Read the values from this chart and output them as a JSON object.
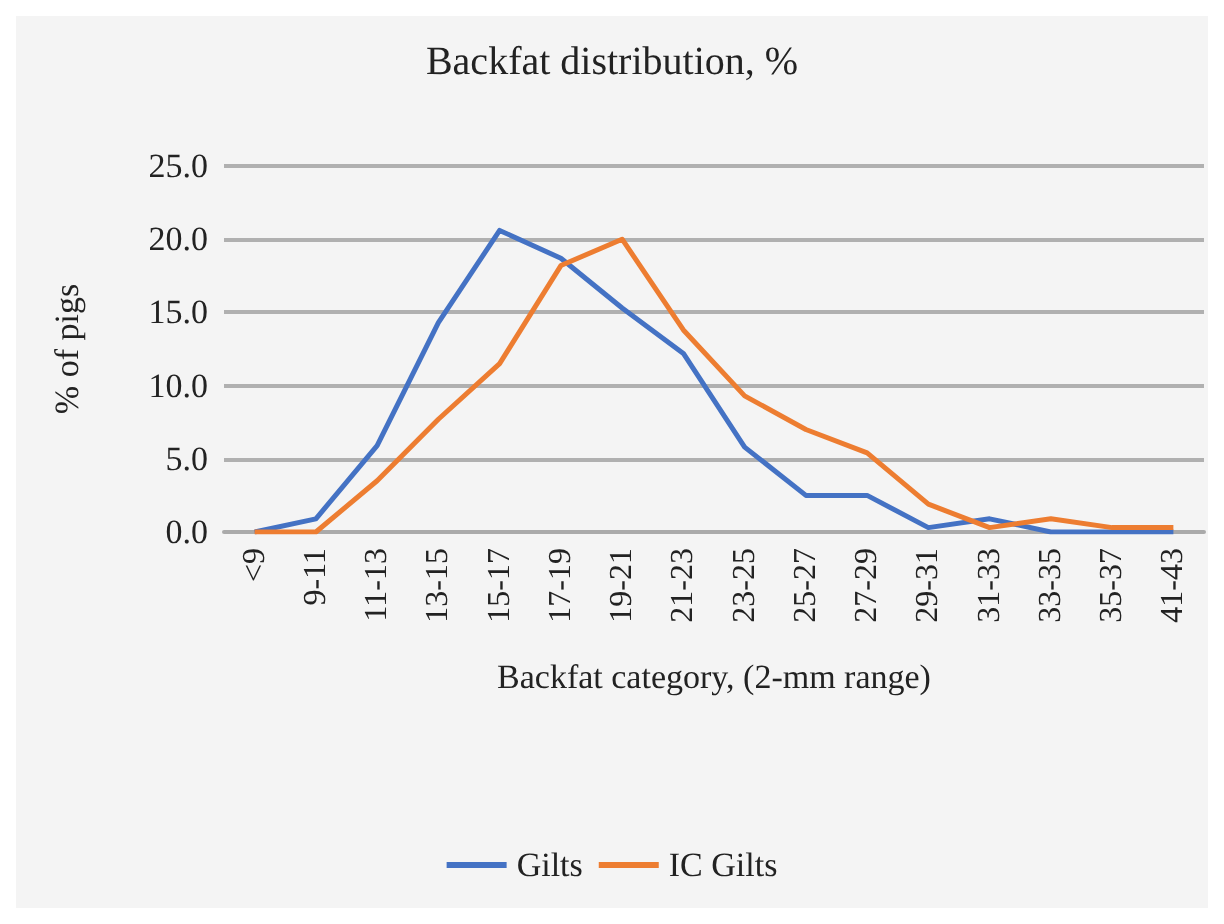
{
  "chart_data": {
    "type": "line",
    "title": "Backfat distribution, %",
    "xlabel": "Backfat category, (2-mm range)",
    "ylabel": "% of pigs",
    "categories": [
      "<9",
      "9-11",
      "11-13",
      "13-15",
      "15-17",
      "17-19",
      "19-21",
      "21-23",
      "23-25",
      "25-27",
      "27-29",
      "29-31",
      "31-33",
      "33-35",
      "35-37",
      "41-43"
    ],
    "series": [
      {
        "name": "Gilts",
        "color": "#4472c4",
        "values": [
          0,
          0.9,
          5.9,
          14.3,
          20.6,
          18.7,
          15.3,
          12.2,
          5.8,
          2.5,
          2.5,
          0.3,
          0.9,
          0,
          0,
          0
        ]
      },
      {
        "name": "IC Gilts",
        "color": "#ed7d31",
        "values": [
          0,
          0,
          3.5,
          7.7,
          11.5,
          18.2,
          20.0,
          13.8,
          9.3,
          7.0,
          5.4,
          1.9,
          0.3,
          0.9,
          0.3,
          0.3
        ]
      }
    ],
    "ylim": [
      0,
      25
    ],
    "yticks": [
      {
        "value": 0,
        "label": "0.0"
      },
      {
        "value": 5,
        "label": "5.0"
      },
      {
        "value": 10,
        "label": "10.0"
      },
      {
        "value": 15,
        "label": "15.0"
      },
      {
        "value": 20,
        "label": "20.0"
      },
      {
        "value": 25,
        "label": "25.0"
      }
    ],
    "grid": "y",
    "legend": "bottom",
    "marker": "none",
    "line_style": "solid"
  }
}
